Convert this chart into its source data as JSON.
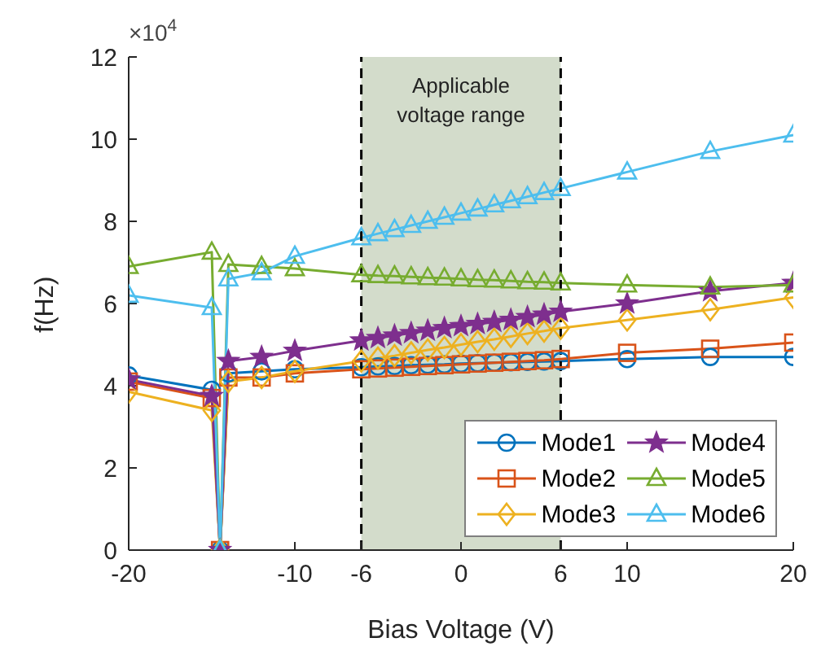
{
  "chart_data": {
    "type": "line",
    "xlabel": "Bias Voltage (V)",
    "ylabel": "f(Hz)",
    "annotations": [
      "×10$^{4}$"
    ],
    "x": [
      -20,
      -15,
      -14.5,
      -14,
      -12,
      -10,
      -6,
      -5,
      -4,
      -3,
      -2,
      -1,
      0,
      1,
      2,
      3,
      4,
      5,
      6,
      10,
      15,
      20
    ],
    "series": [
      {
        "name": "Mode1",
        "color": "#0072bd",
        "marker": "circle",
        "values": [
          4.25,
          3.9,
          0,
          4.3,
          4.35,
          4.4,
          4.45,
          4.47,
          4.48,
          4.5,
          4.51,
          4.52,
          4.54,
          4.55,
          4.56,
          4.57,
          4.58,
          4.59,
          4.6,
          4.65,
          4.7,
          4.7
        ]
      },
      {
        "name": "Mode2",
        "color": "#d95319",
        "marker": "square",
        "values": [
          4.1,
          3.7,
          0,
          4.2,
          4.2,
          4.3,
          4.4,
          4.42,
          4.44,
          4.46,
          4.48,
          4.5,
          4.52,
          4.54,
          4.56,
          4.58,
          4.6,
          4.62,
          4.65,
          4.8,
          4.9,
          5.05
        ]
      },
      {
        "name": "Mode3",
        "color": "#edb120",
        "marker": "diamond",
        "values": [
          3.85,
          3.4,
          0,
          4.1,
          4.2,
          4.35,
          4.6,
          4.67,
          4.73,
          4.8,
          4.87,
          4.93,
          5.0,
          5.07,
          5.13,
          5.2,
          5.27,
          5.33,
          5.4,
          5.6,
          5.85,
          6.15
        ]
      },
      {
        "name": "Mode4",
        "color": "#7e2f8e",
        "marker": "star",
        "values": [
          4.15,
          3.75,
          0,
          4.6,
          4.7,
          4.85,
          5.1,
          5.16,
          5.22,
          5.28,
          5.34,
          5.4,
          5.45,
          5.5,
          5.55,
          5.6,
          5.67,
          5.73,
          5.8,
          6.0,
          6.3,
          6.5
        ]
      },
      {
        "name": "Mode5",
        "color": "#77ac30",
        "marker": "triangle",
        "values": [
          6.9,
          7.25,
          0,
          6.95,
          6.9,
          6.85,
          6.7,
          6.68,
          6.67,
          6.65,
          6.63,
          6.62,
          6.6,
          6.58,
          6.57,
          6.55,
          6.53,
          6.52,
          6.5,
          6.45,
          6.4,
          6.45
        ]
      },
      {
        "name": "Mode6",
        "color": "#4dbeee",
        "marker": "triangle",
        "values": [
          6.2,
          5.9,
          0,
          6.6,
          6.75,
          7.15,
          7.6,
          7.7,
          7.8,
          7.9,
          8.0,
          8.1,
          8.2,
          8.3,
          8.4,
          8.5,
          8.6,
          8.7,
          8.8,
          9.2,
          9.7,
          10.1
        ]
      }
    ],
    "xlim": [
      -20,
      20
    ],
    "xticks": [
      -20,
      -10,
      -6,
      0,
      6,
      10,
      20
    ],
    "ylim": [
      0,
      12
    ],
    "yticks": [
      0,
      2,
      4,
      6,
      8,
      10,
      12
    ],
    "bands": [
      {
        "axis": "x",
        "from": -6,
        "to": 6,
        "label": "Applicable voltage range",
        "color": "#d3dccb"
      }
    ],
    "ref_lines": [
      {
        "axis": "x",
        "value": -6,
        "color": "#000000",
        "line_style": "dashed"
      },
      {
        "axis": "x",
        "value": 6,
        "color": "#000000",
        "line_style": "dashed"
      }
    ],
    "legend": "bottom right",
    "grid": false
  }
}
